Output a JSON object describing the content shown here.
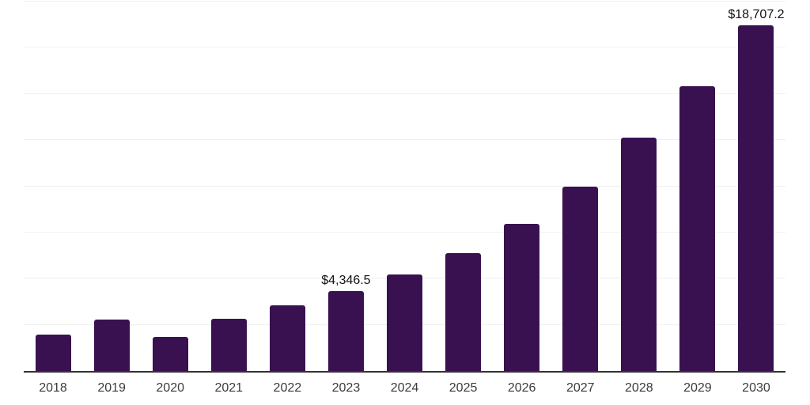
{
  "chart": {
    "background_color": "#ffffff"
  },
  "chart_data": {
    "type": "bar",
    "title": "",
    "xlabel": "",
    "ylabel": "",
    "categories": [
      "2018",
      "2019",
      "2020",
      "2021",
      "2022",
      "2023",
      "2024",
      "2025",
      "2026",
      "2027",
      "2028",
      "2029",
      "2030"
    ],
    "values": [
      1970,
      2785,
      1840,
      2825,
      3555,
      4346.5,
      5225,
      6380,
      7965,
      9980,
      12635,
      15420,
      18707.2
    ],
    "annotations": {
      "2023": "$4,346.5",
      "2030": "$18,707.2"
    },
    "ylim": [
      0,
      20000
    ],
    "gridline_values": [
      2500,
      5000,
      7500,
      10000,
      12500,
      15000,
      17500,
      20000
    ],
    "grid": "horizontal",
    "legend": "none",
    "y_axis_labels_visible": false,
    "colors": {
      "bar": "#391150",
      "gridline": "#f0f0f0",
      "axis_line": "#333333",
      "tick_label": "#3b3b3b",
      "annotation_label": "#111111"
    }
  }
}
